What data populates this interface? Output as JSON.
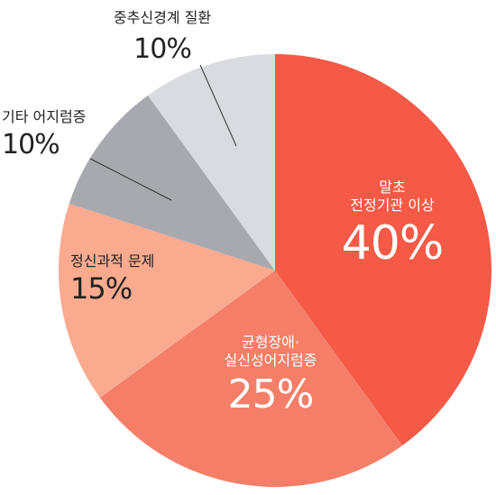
{
  "chart_data": {
    "type": "pie",
    "categories": [
      "말초\n전정기관 이상",
      "균형장애·\n실신성어지럼증",
      "정신과적 문제",
      "기타 어지럼증",
      "중추신경계 질환"
    ],
    "values": [
      40,
      25,
      15,
      10,
      10
    ],
    "value_labels": [
      "40%",
      "25%",
      "15%",
      "10%",
      "10%"
    ],
    "colors": [
      "#f45a46",
      "#f47e68",
      "#f9aa8f",
      "#a8a9ae",
      "#dadbe0"
    ]
  }
}
